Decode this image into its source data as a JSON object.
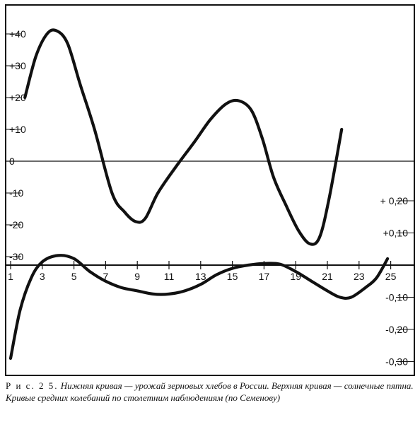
{
  "chart_data": {
    "type": "line",
    "x_ticks": [
      1,
      3,
      5,
      7,
      9,
      11,
      13,
      15,
      17,
      19,
      21,
      23,
      25
    ],
    "left_axis": {
      "ticks": [
        "+40",
        "+30",
        "+20",
        "+10",
        "0",
        "-10",
        "-20",
        "-30"
      ],
      "ylim": [
        -33,
        45
      ]
    },
    "right_axis": {
      "ticks": [
        "+ 0,20",
        "+0,10",
        "-0,10",
        "-0,20",
        "-0,30"
      ],
      "ylim": [
        -0.32,
        0.28
      ]
    },
    "series": [
      {
        "axis": "left",
        "x": [
          1.9,
          2.6,
          3.3,
          3.9,
          4.6,
          5.4,
          6.3,
          7.4,
          8.2,
          8.9,
          9.5,
          10.3,
          11.4,
          12.6,
          13.6,
          14.6,
          15.4,
          16.2,
          16.9,
          17.6,
          18.4,
          19.2,
          19.9,
          20.5,
          21.1,
          21.9
        ],
        "values": [
          20,
          33,
          40,
          41,
          37,
          24,
          10,
          -10,
          -16,
          -19,
          -18,
          -10,
          -2,
          6,
          13,
          18,
          19,
          16,
          7,
          -5,
          -14,
          -22,
          -26,
          -24,
          -12,
          10
        ]
      },
      {
        "axis": "right",
        "x": [
          1,
          1.6,
          2.3,
          3.0,
          4.0,
          5.0,
          6.0,
          7.0,
          8.0,
          9.0,
          10.0,
          11.0,
          12.0,
          13.0,
          14.0,
          15.0,
          16.0,
          17.0,
          18.0,
          19.0,
          20.0,
          21.0,
          21.8,
          22.5,
          23.4,
          24.1,
          24.8
        ],
        "values": [
          -0.29,
          -0.14,
          -0.04,
          0.01,
          0.03,
          0.02,
          -0.02,
          -0.05,
          -0.07,
          -0.08,
          -0.09,
          -0.09,
          -0.08,
          -0.06,
          -0.03,
          -0.01,
          0.0,
          0.005,
          0.003,
          -0.02,
          -0.05,
          -0.08,
          -0.1,
          -0.1,
          -0.07,
          -0.04,
          0.02
        ]
      }
    ]
  },
  "caption": {
    "lead": "Р и с.  2 5.",
    "text": " Нижняя кривая — урожай зерновых хлебов в России. Верхняя кривая — солнечные пятна. Кривые средних колебаний по столетним наблюдениям (по Семенову)"
  }
}
